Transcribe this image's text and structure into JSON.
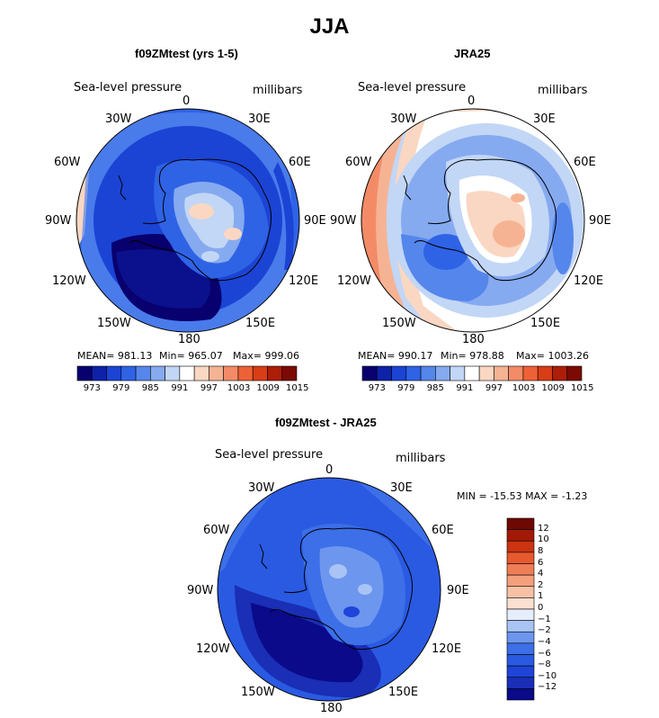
{
  "title": "JJA",
  "colors": {
    "levels": [
      "#08006e",
      "#0d22a9",
      "#1b44d5",
      "#2f63e6",
      "#5586ec",
      "#86aaf0",
      "#c2d6f6",
      "#ffffff",
      "#f9d7c2",
      "#f6b394",
      "#f48b67",
      "#ee6136",
      "#d83d16",
      "#ad1d08",
      "#7a0a03"
    ],
    "diff": [
      "#0a0a8a",
      "#1a2eb6",
      "#1f44d8",
      "#2a5ae2",
      "#3c6fe8",
      "#6d96ee",
      "#a9c4f4",
      "#e6eefb",
      "#fbe0d2",
      "#f7c1a6",
      "#f4a07c",
      "#ef7d55",
      "#e8592f",
      "#cc3412",
      "#a21a06",
      "#6e0802"
    ]
  },
  "panels": [
    {
      "title": "f09ZMtest (yrs 1-5)",
      "variable": "Sea-level pressure",
      "units": "millibars",
      "stats": {
        "mean_label": "MEAN=",
        "mean": "981.13",
        "min_label": "Min=",
        "min": "965.07",
        "max_label": "Max=",
        "max": "999.06"
      },
      "longitude_labels": [
        "0",
        "30E",
        "60E",
        "90E",
        "120E",
        "150E",
        "180",
        "150W",
        "120W",
        "90W",
        "60W",
        "30W"
      ],
      "colorbar_ticks": [
        "973",
        "979",
        "985",
        "991",
        "997",
        "1003",
        "1009",
        "1015"
      ]
    },
    {
      "title": "JRA25",
      "variable": "Sea-level pressure",
      "units": "millibars",
      "stats": {
        "mean_label": "MEAN=",
        "mean": "990.17",
        "min_label": "Min=",
        "min": "978.88",
        "max_label": "Max=",
        "max": "1003.26"
      },
      "longitude_labels": [
        "0",
        "30E",
        "60E",
        "90E",
        "120E",
        "150E",
        "180",
        "150W",
        "120W",
        "90W",
        "60W",
        "30W"
      ],
      "colorbar_ticks": [
        "973",
        "979",
        "985",
        "991",
        "997",
        "1003",
        "1009",
        "1015"
      ]
    },
    {
      "title": "f09ZMtest - JRA25",
      "variable": "Sea-level pressure",
      "units": "millibars",
      "stats_text": "MIN = -15.53 MAX =  -1.23",
      "longitude_labels": [
        "0",
        "30E",
        "60E",
        "90E",
        "120E",
        "150E",
        "180",
        "150W",
        "120W",
        "90W",
        "60W",
        "30W"
      ],
      "colorbar_ticks": [
        "12",
        "10",
        "8",
        "6",
        "4",
        "2",
        "1",
        "0",
        "−1",
        "−2",
        "−4",
        "−6",
        "−8",
        "−10",
        "−12"
      ]
    }
  ],
  "chart_data": [
    {
      "type": "heatmap",
      "projection": "south polar stereographic",
      "title": "f09ZMtest (yrs 1-5)",
      "variable": "Sea-level pressure",
      "units": "millibars",
      "mean": 981.13,
      "min": 965.07,
      "max": 999.06,
      "contour_levels": [
        970,
        973,
        976,
        979,
        982,
        985,
        988,
        991,
        994,
        997,
        1000,
        1003,
        1006,
        1009,
        1012,
        1015
      ],
      "colorbar_tick_labels": [
        973,
        979,
        985,
        991,
        997,
        1003,
        1009,
        1015
      ]
    },
    {
      "type": "heatmap",
      "projection": "south polar stereographic",
      "title": "JRA25",
      "variable": "Sea-level pressure",
      "units": "millibars",
      "mean": 990.17,
      "min": 978.88,
      "max": 1003.26,
      "contour_levels": [
        970,
        973,
        976,
        979,
        982,
        985,
        988,
        991,
        994,
        997,
        1000,
        1003,
        1006,
        1009,
        1012,
        1015
      ],
      "colorbar_tick_labels": [
        973,
        979,
        985,
        991,
        997,
        1003,
        1009,
        1015
      ]
    },
    {
      "type": "heatmap",
      "projection": "south polar stereographic",
      "title": "f09ZMtest - JRA25",
      "variable": "Sea-level pressure",
      "units": "millibars",
      "min": -15.53,
      "max": -1.23,
      "contour_levels": [
        -12,
        -10,
        -8,
        -6,
        -4,
        -2,
        -1,
        0,
        1,
        2,
        4,
        6,
        8,
        10,
        12
      ],
      "colorbar_tick_labels": [
        12,
        10,
        8,
        6,
        4,
        2,
        1,
        0,
        -1,
        -2,
        -4,
        -6,
        -8,
        -10,
        -12
      ]
    }
  ]
}
